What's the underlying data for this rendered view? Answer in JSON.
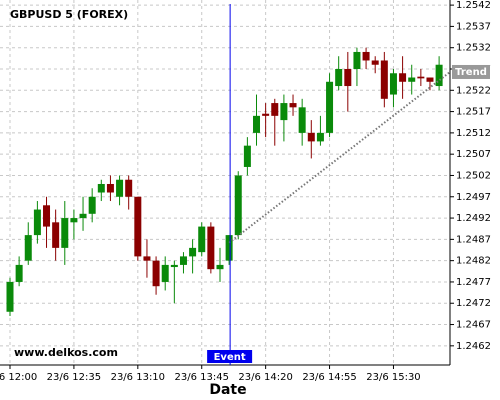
{
  "chart_data": {
    "type": "candlestick",
    "title": "GBPUSD 5 (FOREX)",
    "watermark": "www.delkos.com",
    "x_label": "Date",
    "categories": [
      "23/6 12:00",
      null,
      null,
      null,
      null,
      null,
      null,
      "23/6 12:35",
      null,
      null,
      null,
      null,
      null,
      null,
      "23/6 13:10",
      null,
      null,
      null,
      null,
      null,
      null,
      "23/6 13:45",
      null,
      null,
      null,
      null,
      null,
      null,
      "23/6 14:20",
      null,
      null,
      null,
      null,
      null,
      null,
      "23/6 14:55",
      null,
      null,
      null,
      null,
      null,
      null,
      "23/6 15:30",
      null,
      null,
      null,
      null,
      null
    ],
    "open": [
      1.247,
      1.2477,
      1.2482,
      1.2488,
      1.2495,
      1.2491,
      1.2485,
      1.2491,
      1.2492,
      1.2493,
      1.2498,
      1.25,
      1.2497,
      1.2501,
      1.2497,
      1.2483,
      1.2482,
      1.2477,
      1.24805,
      1.2481,
      1.2483,
      1.2484,
      1.249,
      1.248,
      1.2482,
      1.2488,
      1.2504,
      1.2512,
      1.25165,
      1.2519,
      1.2515,
      1.2519,
      1.2512,
      1.2512,
      1.251,
      1.2512,
      1.2523,
      1.2527,
      1.2527,
      1.2531,
      1.2529,
      1.2529,
      1.2521,
      1.2526,
      1.2524,
      1.25252,
      1.2525,
      1.2523
    ],
    "high": [
      1.2478,
      1.2483,
      1.2491,
      1.2496,
      1.2497,
      1.2494,
      1.2496,
      1.2494,
      1.2497,
      1.2499,
      1.2501,
      1.2502,
      1.2502,
      1.2502,
      1.2497,
      1.2487,
      1.2483,
      1.2483,
      1.2482,
      1.2484,
      1.2487,
      1.2491,
      1.2491,
      1.2485,
      1.2488,
      1.2503,
      1.2511,
      1.2521,
      1.2519,
      1.252,
      1.2521,
      1.2521,
      1.252,
      1.2515,
      1.2516,
      1.2526,
      1.253,
      1.2531,
      1.2532,
      1.2532,
      1.253,
      1.2531,
      1.2527,
      1.253,
      1.2528,
      1.2527,
      1.2525,
      1.253
    ],
    "low": [
      1.2469,
      1.2476,
      1.2481,
      1.2486,
      1.2485,
      1.2482,
      1.2481,
      1.2487,
      1.2489,
      1.2491,
      1.2496,
      1.2496,
      1.2495,
      1.2494,
      1.2482,
      1.2478,
      1.2474,
      1.2475,
      1.2472,
      1.2479,
      1.2479,
      1.2483,
      1.2479,
      1.2477,
      1.2481,
      1.2487,
      1.2502,
      1.2509,
      1.2511,
      1.2509,
      1.251,
      1.2516,
      1.2509,
      1.2506,
      1.2509,
      1.2511,
      1.2522,
      1.2517,
      1.2523,
      1.2527,
      1.2526,
      1.2518,
      1.2518,
      1.252,
      1.2521,
      1.2523,
      1.2522,
      1.2522
    ],
    "close": [
      1.2477,
      1.2481,
      1.2488,
      1.2494,
      1.249,
      1.2485,
      1.2492,
      1.2492,
      1.2493,
      1.2497,
      1.25,
      1.2498,
      1.2501,
      1.2497,
      1.2483,
      1.2482,
      1.2476,
      1.2481,
      1.2481,
      1.2483,
      1.2485,
      1.249,
      1.248,
      1.2481,
      1.2488,
      1.2502,
      1.2509,
      1.2516,
      1.2516,
      1.2516,
      1.2519,
      1.2518,
      1.2518,
      1.251,
      1.2512,
      1.2524,
      1.2527,
      1.2523,
      1.2531,
      1.2529,
      1.2528,
      1.252,
      1.2526,
      1.2524,
      1.2525,
      1.25248,
      1.2524,
      1.2528
    ],
    "up_color": "#0a8a0a",
    "down_color": "#8b0000",
    "event": {
      "label": "Event",
      "color": "#0000ee"
    },
    "trend": {
      "label": "Trend",
      "start": 1.24862,
      "end": 1.25263
    },
    "ylim": [
      1.24575,
      1.25432
    ],
    "yticks": [
      1.2462,
      1.2467,
      1.2472,
      1.2477,
      1.2482,
      1.2487,
      1.2492,
      1.2497,
      1.2502,
      1.2507,
      1.2512,
      1.2517,
      1.2522,
      1.2527,
      1.2532,
      1.2537,
      1.2542
    ],
    "grid": true
  }
}
